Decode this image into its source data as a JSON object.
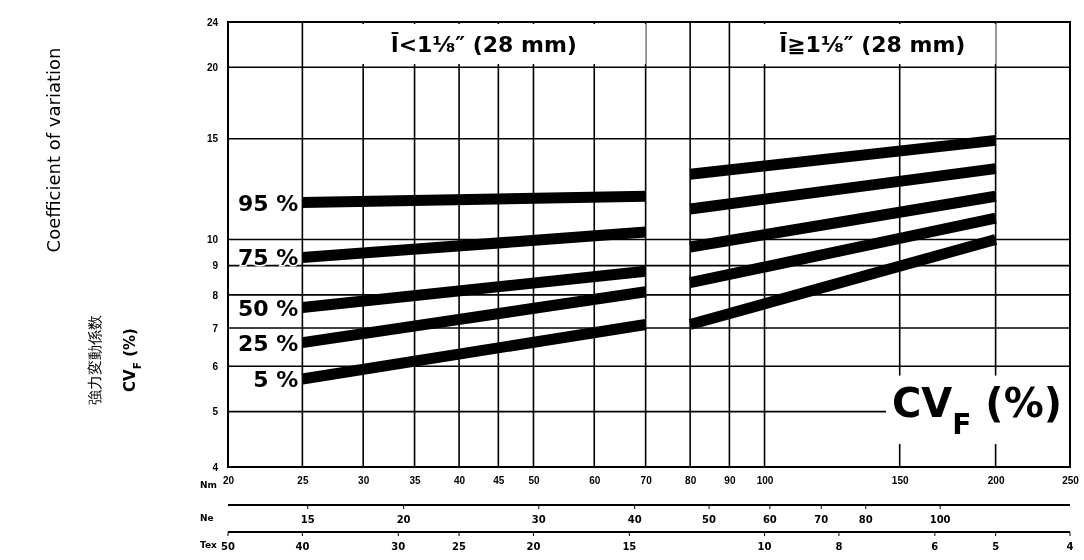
{
  "chart_data": {
    "type": "line",
    "log": "xy",
    "grid": true,
    "marker": "none",
    "line_style": "solid",
    "ylabel": "Coefficient of variation\n強力変動係数\nCV$_{F}$ (%)",
    "xlabel": "Nm",
    "xlim": [
      20,
      250
    ],
    "xticks": [
      20,
      25,
      30,
      35,
      40,
      45,
      50,
      60,
      70,
      80,
      90,
      100,
      150,
      200,
      250
    ],
    "ylim": [
      4,
      24
    ],
    "yticks": [
      4,
      5,
      6,
      7,
      8,
      9,
      10,
      15,
      20,
      24
    ],
    "annotations": [
      "l̄<1⅛″ (28 mm)",
      "l̄≧1⅛″ (28 mm)",
      "CV$_{F}$ (%)",
      "Ne",
      "15",
      "20",
      "30",
      "40",
      "50",
      "60",
      "70",
      "80",
      "100",
      "Tex",
      "50",
      "40",
      "30",
      "25",
      "20",
      "15",
      "10",
      "8",
      "6",
      "5",
      "4"
    ],
    "series": [
      {
        "name": "95 %",
        "color": "#000000",
        "x": [
          25,
          70
        ],
        "values": [
          11.6,
          11.9
        ]
      },
      {
        "name": "75 %",
        "color": "#000000",
        "x": [
          25,
          70
        ],
        "values": [
          9.3,
          10.3
        ]
      },
      {
        "name": "50 %",
        "color": "#000000",
        "x": [
          25,
          70
        ],
        "values": [
          7.6,
          8.8
        ]
      },
      {
        "name": "25 %",
        "color": "#000000",
        "x": [
          25,
          70
        ],
        "values": [
          6.6,
          8.1
        ]
      },
      {
        "name": "5 %",
        "color": "#000000",
        "x": [
          25,
          70
        ],
        "values": [
          5.7,
          7.1
        ]
      },
      {
        "color": "#000000",
        "x": [
          80,
          200
        ],
        "values": [
          13.0,
          14.9
        ]
      },
      {
        "color": "#000000",
        "x": [
          80,
          200
        ],
        "values": [
          11.3,
          13.3
        ]
      },
      {
        "color": "#000000",
        "x": [
          80,
          200
        ],
        "values": [
          9.7,
          11.9
        ]
      },
      {
        "color": "#000000",
        "x": [
          80,
          200
        ],
        "values": [
          8.4,
          10.9
        ]
      },
      {
        "color": "#000000",
        "x": [
          80,
          200
        ],
        "values": [
          7.1,
          10.0
        ]
      }
    ]
  }
}
